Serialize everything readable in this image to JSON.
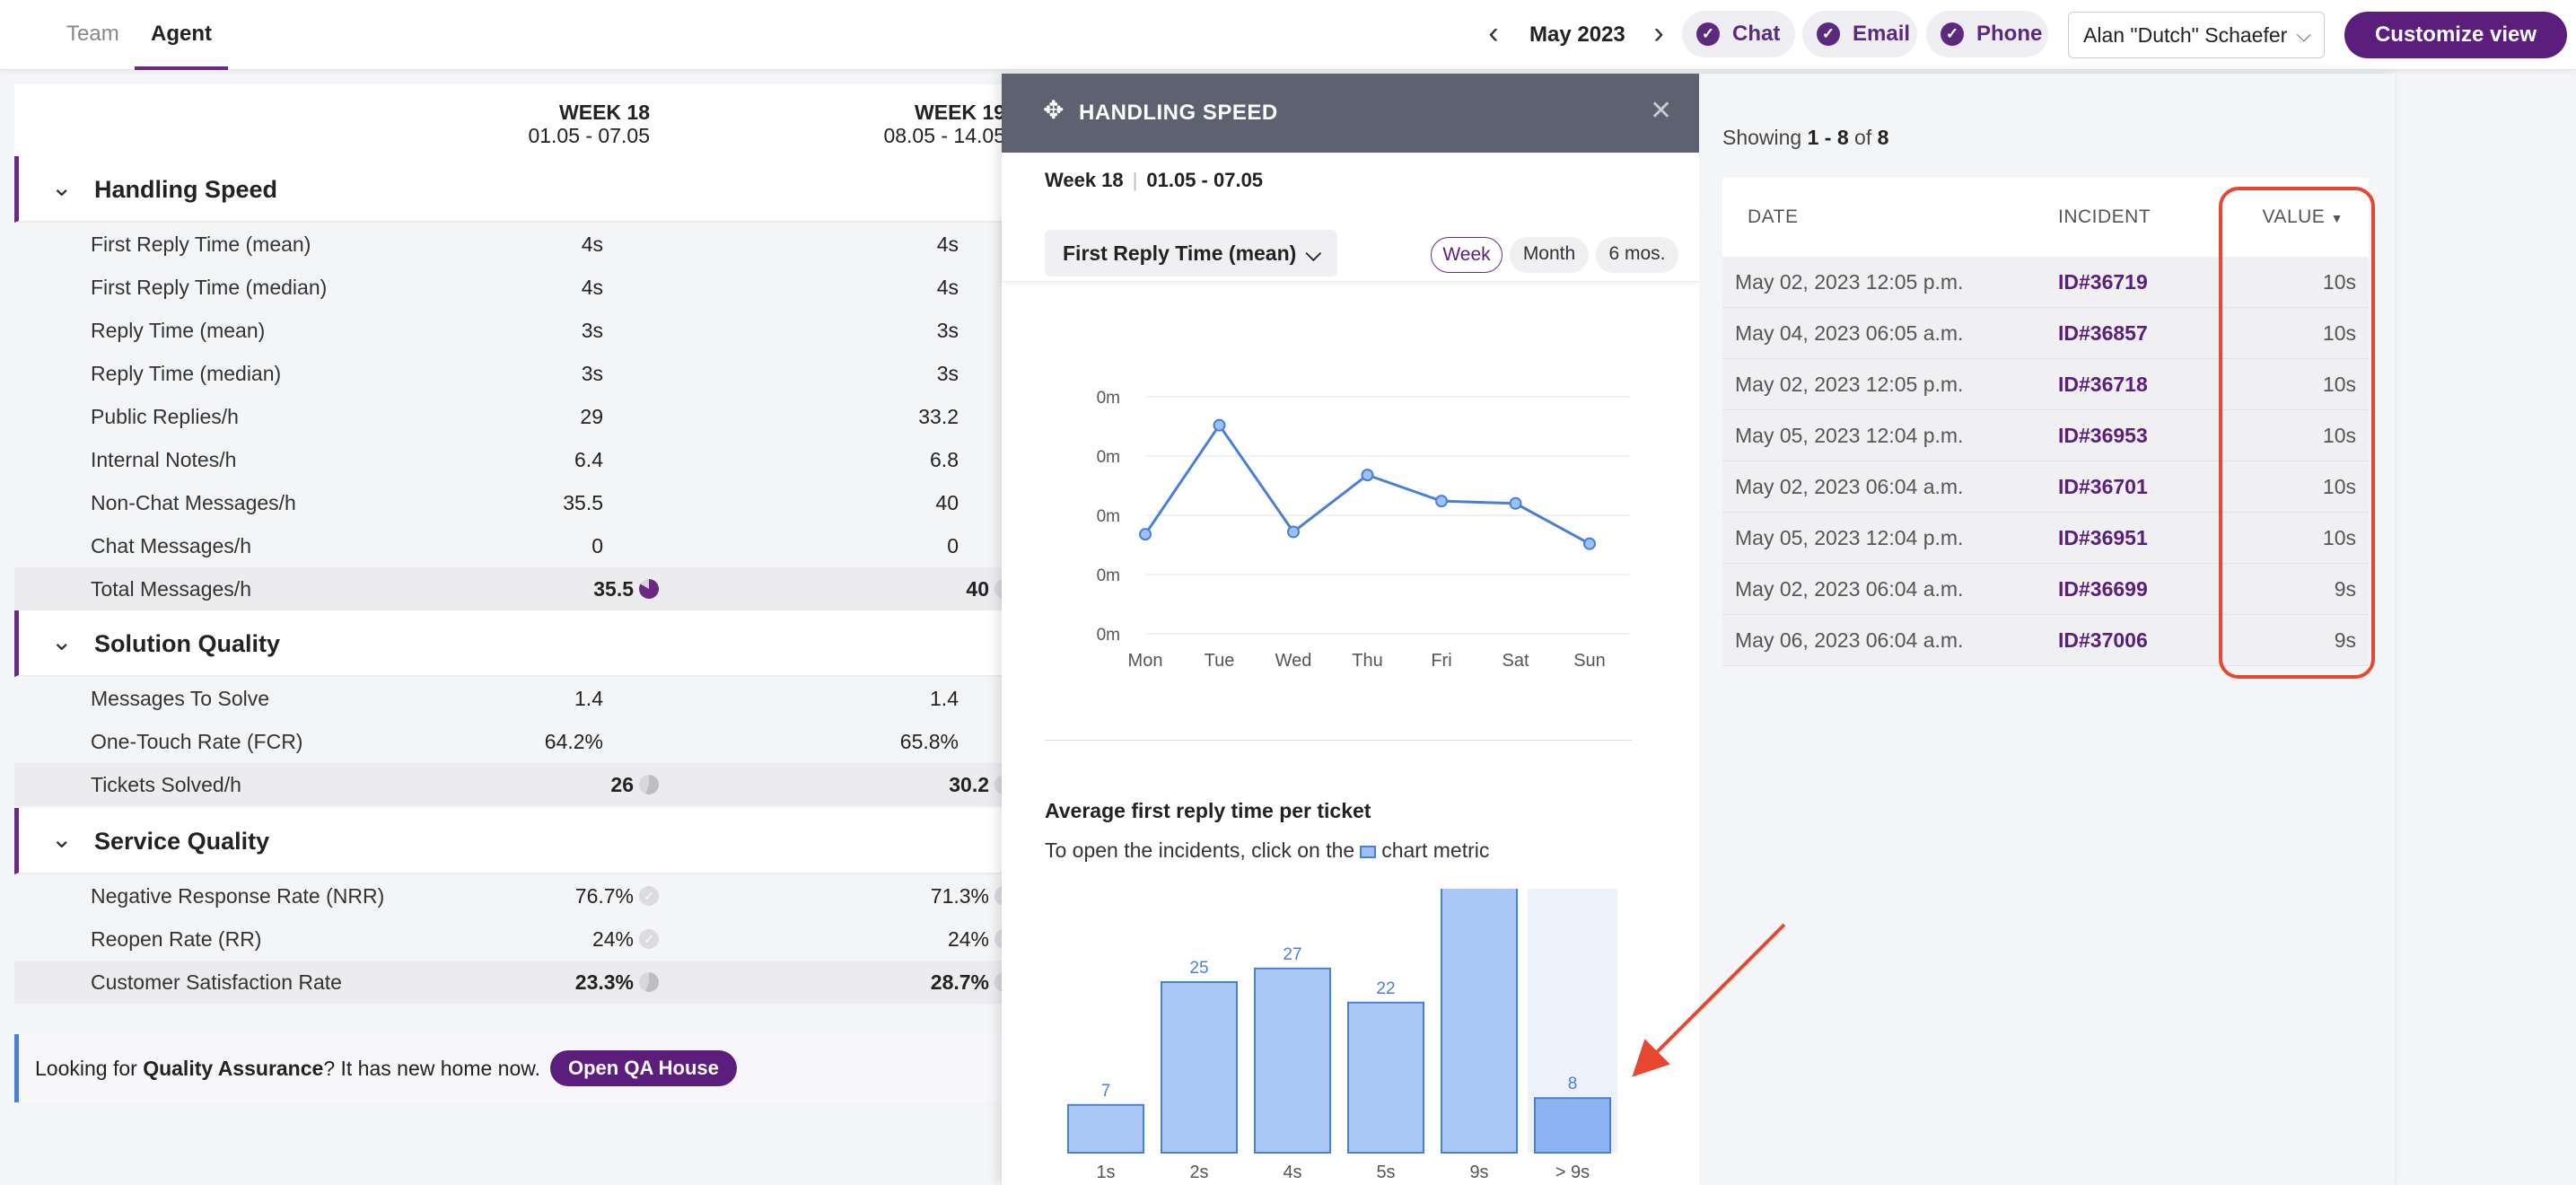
{
  "topbar": {
    "tabs": [
      "Team",
      "Agent"
    ],
    "month": "May 2023",
    "channels": [
      "Chat",
      "Email",
      "Phone"
    ],
    "agent": "Alan \"Dutch\" Schaefer",
    "customize": "Customize view"
  },
  "weeks": [
    {
      "label": "WEEK 18",
      "range": "01.05 - 07.05"
    },
    {
      "label": "WEEK 19",
      "range": "08.05 - 14.05"
    }
  ],
  "sections": [
    {
      "title": "Handling Speed",
      "rows": [
        {
          "label": "First Reply Time (mean)",
          "w18": "4s",
          "w19": "4s"
        },
        {
          "label": "First Reply Time (median)",
          "w18": "4s",
          "w19": "4s"
        },
        {
          "label": "Reply Time (mean)",
          "w18": "3s",
          "w19": "3s"
        },
        {
          "label": "Reply Time (median)",
          "w18": "3s",
          "w19": "3s"
        },
        {
          "label": "Public Replies/h",
          "w18": "29",
          "w19": "33.2"
        },
        {
          "label": "Internal Notes/h",
          "w18": "6.4",
          "w19": "6.8"
        },
        {
          "label": "Non-Chat Messages/h",
          "w18": "35.5",
          "w19": "40"
        },
        {
          "label": "Chat Messages/h",
          "w18": "0",
          "w19": "0"
        },
        {
          "label": "Total Messages/h",
          "w18": "35.5",
          "w19": "40"
        }
      ]
    },
    {
      "title": "Solution Quality",
      "rows": [
        {
          "label": "Messages To Solve",
          "w18": "1.4",
          "w19": "1.4"
        },
        {
          "label": "One-Touch Rate (FCR)",
          "w18": "64.2%",
          "w19": "65.8%"
        },
        {
          "label": "Tickets Solved/h",
          "w18": "26",
          "w19": "30.2"
        }
      ]
    },
    {
      "title": "Service Quality",
      "rows": [
        {
          "label": "Negative Response Rate (NRR)",
          "w18": "76.7%",
          "w19": "71.3%"
        },
        {
          "label": "Reopen Rate (RR)",
          "w18": "24%",
          "w19": "24%"
        },
        {
          "label": "Customer Satisfaction Rate",
          "w18": "23.3%",
          "w19": "28.7%"
        }
      ]
    }
  ],
  "qa_banner": {
    "prefix": "Looking for ",
    "bold": "Quality Assurance",
    "suffix": "? It has new home now.",
    "button": "Open QA House"
  },
  "drawer": {
    "title": "HANDLING SPEED",
    "week": "Week 18",
    "range": "01.05 - 07.05",
    "metric": "First Reply Time (mean)",
    "periods": [
      "Week",
      "Month",
      "6 mos."
    ],
    "active_period": "Week",
    "avg_title": "Average first reply time per ticket",
    "avg_sub_prefix": "To open the incidents, click on the",
    "avg_sub_suffix": "chart metric"
  },
  "chart_data": [
    {
      "type": "line",
      "categories": [
        "Mon",
        "Tue",
        "Wed",
        "Thu",
        "Fri",
        "Sat",
        "Sun"
      ],
      "values": [
        0.42,
        0.88,
        0.43,
        0.67,
        0.56,
        0.55,
        0.38
      ],
      "ytick_labels": [
        "0m",
        "0m",
        "0m",
        "0m",
        "0m"
      ],
      "ylim": [
        0,
        1
      ],
      "grid": true,
      "color": "#4a7fd6"
    },
    {
      "type": "bar",
      "categories": [
        "1s",
        "2s",
        "4s",
        "5s",
        "9s",
        "> 9s"
      ],
      "values": [
        7,
        25,
        27,
        22,
        39,
        8
      ],
      "selected": "> 9s",
      "ylim": [
        0,
        40
      ],
      "color": "#9dc0f5"
    }
  ],
  "incidents": {
    "showing_prefix": "Showing",
    "showing_range": "1 - 8",
    "showing_of": "of",
    "showing_total": "8",
    "columns": [
      "DATE",
      "INCIDENT",
      "VALUE"
    ],
    "rows": [
      {
        "date": "May 02, 2023 12:05 p.m.",
        "id": "ID#36719",
        "value": "10s"
      },
      {
        "date": "May 04, 2023 06:05 a.m.",
        "id": "ID#36857",
        "value": "10s"
      },
      {
        "date": "May 02, 2023 12:05 p.m.",
        "id": "ID#36718",
        "value": "10s"
      },
      {
        "date": "May 05, 2023 12:04 p.m.",
        "id": "ID#36953",
        "value": "10s"
      },
      {
        "date": "May 02, 2023 06:04 a.m.",
        "id": "ID#36701",
        "value": "10s"
      },
      {
        "date": "May 05, 2023 12:04 p.m.",
        "id": "ID#36951",
        "value": "10s"
      },
      {
        "date": "May 02, 2023 06:04 a.m.",
        "id": "ID#36699",
        "value": "9s"
      },
      {
        "date": "May 06, 2023 06:04 a.m.",
        "id": "ID#37006",
        "value": "9s"
      }
    ]
  },
  "colors": {
    "accent": "#5b1e7d",
    "chart_blue": "#4a7fd6",
    "highlight": "#e8472f"
  }
}
